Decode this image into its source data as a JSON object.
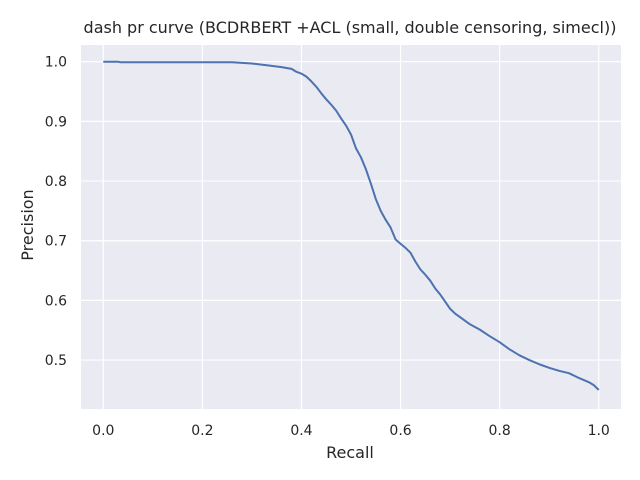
{
  "chart_data": {
    "type": "line",
    "title": "dash pr curve (BCDRBERT +ACL (small, double censoring, simecl))",
    "xlabel": "Recall",
    "ylabel": "Precision",
    "xlim": [
      -0.045,
      1.045
    ],
    "ylim": [
      0.418,
      1.028
    ],
    "grid": true,
    "xticks": [
      0.0,
      0.2,
      0.4,
      0.6,
      0.8,
      1.0
    ],
    "xtick_labels": [
      "0.0",
      "0.2",
      "0.4",
      "0.6",
      "0.8",
      "1.0"
    ],
    "yticks": [
      0.5,
      0.6,
      0.7,
      0.8,
      0.9,
      1.0
    ],
    "ytick_labels": [
      "0.5",
      "0.6",
      "0.7",
      "0.8",
      "0.9",
      "1.0"
    ],
    "colors": {
      "background": "#eaeaf2",
      "grid": "#ffffff",
      "line": "#4c72b0"
    },
    "series": [
      {
        "name": "PR curve",
        "x": [
          0.0,
          0.03,
          0.035,
          0.1,
          0.2,
          0.26,
          0.3,
          0.33,
          0.36,
          0.38,
          0.39,
          0.4,
          0.41,
          0.42,
          0.43,
          0.44,
          0.45,
          0.46,
          0.47,
          0.48,
          0.49,
          0.5,
          0.51,
          0.52,
          0.53,
          0.54,
          0.55,
          0.56,
          0.57,
          0.58,
          0.59,
          0.6,
          0.61,
          0.62,
          0.63,
          0.64,
          0.65,
          0.66,
          0.67,
          0.68,
          0.69,
          0.7,
          0.71,
          0.72,
          0.74,
          0.76,
          0.78,
          0.8,
          0.82,
          0.84,
          0.86,
          0.88,
          0.9,
          0.92,
          0.94,
          0.96,
          0.98,
          0.99,
          1.0
        ],
        "y": [
          1.0,
          1.0,
          0.999,
          0.999,
          0.999,
          0.999,
          0.997,
          0.994,
          0.991,
          0.988,
          0.983,
          0.98,
          0.975,
          0.967,
          0.958,
          0.947,
          0.937,
          0.928,
          0.918,
          0.905,
          0.893,
          0.878,
          0.855,
          0.84,
          0.82,
          0.796,
          0.77,
          0.75,
          0.735,
          0.722,
          0.702,
          0.695,
          0.688,
          0.68,
          0.665,
          0.652,
          0.643,
          0.633,
          0.62,
          0.61,
          0.598,
          0.586,
          0.578,
          0.572,
          0.56,
          0.551,
          0.54,
          0.53,
          0.518,
          0.508,
          0.5,
          0.493,
          0.487,
          0.482,
          0.478,
          0.47,
          0.463,
          0.458,
          0.45
        ]
      }
    ]
  }
}
